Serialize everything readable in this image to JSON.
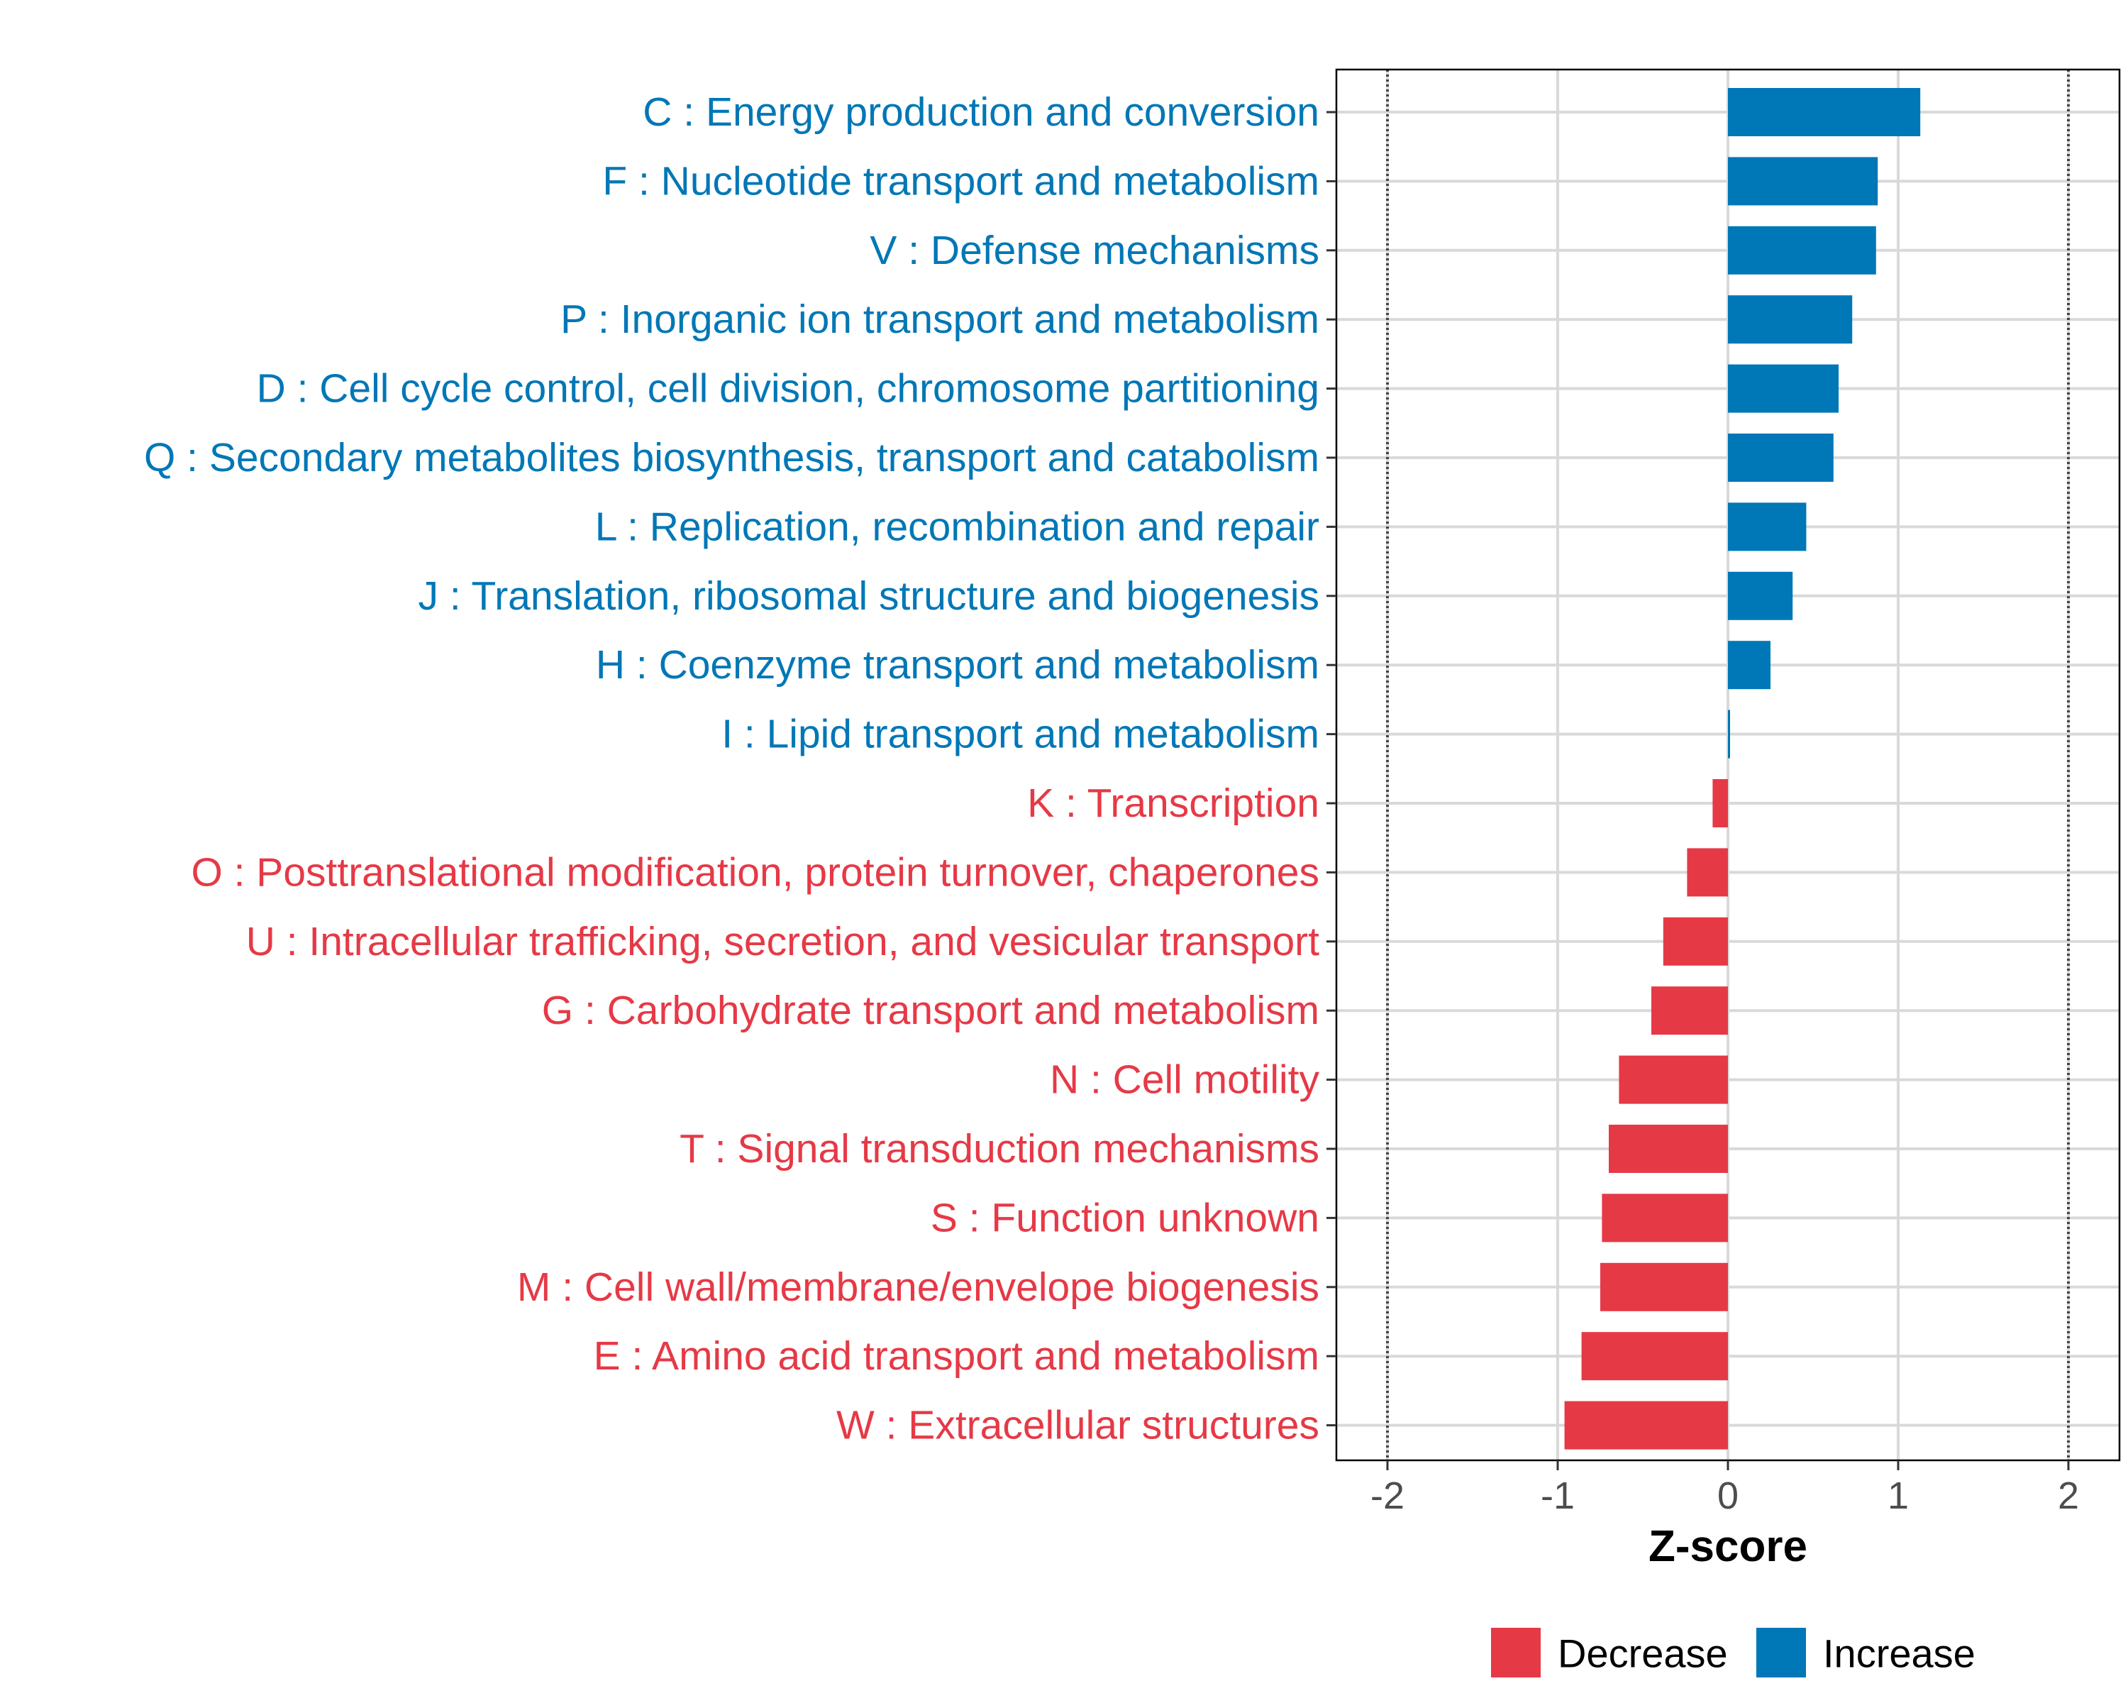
{
  "chart_data": {
    "type": "bar",
    "orientation": "horizontal",
    "xlabel": "Z-score",
    "xlim": [
      -2.3,
      2.3
    ],
    "xticks": [
      -2,
      -1,
      0,
      1,
      2
    ],
    "xtick_labels": [
      "-2",
      "-1",
      "0",
      "1",
      "2"
    ],
    "reference_lines": [
      -2,
      2
    ],
    "grid": true,
    "legend": {
      "placement": "bottom",
      "entries": [
        {
          "label": "Decrease",
          "color": "#E63946"
        },
        {
          "label": "Increase",
          "color": "#0077B6"
        }
      ]
    },
    "categories": [
      {
        "label": "C : Energy production and conversion",
        "value": 1.13,
        "group": "Increase"
      },
      {
        "label": "F : Nucleotide transport and metabolism",
        "value": 0.88,
        "group": "Increase"
      },
      {
        "label": "V : Defense mechanisms",
        "value": 0.87,
        "group": "Increase"
      },
      {
        "label": "P : Inorganic ion transport and metabolism",
        "value": 0.73,
        "group": "Increase"
      },
      {
        "label": "D : Cell cycle control, cell division, chromosome partitioning",
        "value": 0.65,
        "group": "Increase"
      },
      {
        "label": "Q : Secondary metabolites biosynthesis, transport and catabolism",
        "value": 0.62,
        "group": "Increase"
      },
      {
        "label": "L : Replication, recombination and repair",
        "value": 0.46,
        "group": "Increase"
      },
      {
        "label": "J : Translation, ribosomal structure and biogenesis",
        "value": 0.38,
        "group": "Increase"
      },
      {
        "label": "H : Coenzyme transport and metabolism",
        "value": 0.25,
        "group": "Increase"
      },
      {
        "label": "I : Lipid transport and metabolism",
        "value": 0.01,
        "group": "Increase"
      },
      {
        "label": "K : Transcription",
        "value": -0.09,
        "group": "Decrease"
      },
      {
        "label": "O : Posttranslational modification, protein turnover, chaperones",
        "value": -0.24,
        "group": "Decrease"
      },
      {
        "label": "U : Intracellular trafficking, secretion, and vesicular transport",
        "value": -0.38,
        "group": "Decrease"
      },
      {
        "label": "G : Carbohydrate transport and metabolism",
        "value": -0.45,
        "group": "Decrease"
      },
      {
        "label": "N : Cell motility",
        "value": -0.64,
        "group": "Decrease"
      },
      {
        "label": "T : Signal transduction mechanisms",
        "value": -0.7,
        "group": "Decrease"
      },
      {
        "label": "S : Function unknown",
        "value": -0.74,
        "group": "Decrease"
      },
      {
        "label": "M : Cell wall/membrane/envelope biogenesis",
        "value": -0.75,
        "group": "Decrease"
      },
      {
        "label": "E : Amino acid transport and metabolism",
        "value": -0.86,
        "group": "Decrease"
      },
      {
        "label": "W : Extracellular structures",
        "value": -0.96,
        "group": "Decrease"
      }
    ]
  }
}
